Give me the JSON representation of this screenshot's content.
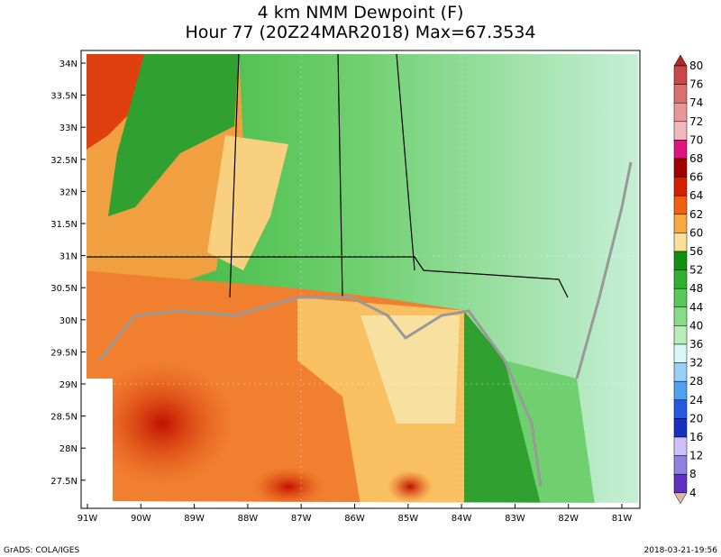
{
  "title": {
    "line1": "4 km NMM Dewpoint (F)",
    "line2": "Hour 77 (20Z24MAR2018) Max=67.3534"
  },
  "lat_labels": [
    "34N",
    "33.5N",
    "33N",
    "32.5N",
    "32N",
    "31.5N",
    "31N",
    "30.5N",
    "30N",
    "29.5N",
    "29N",
    "28.5N",
    "28N",
    "27.5N"
  ],
  "lon_labels": [
    "91W",
    "90W",
    "89W",
    "88W",
    "87W",
    "86W",
    "85W",
    "84W",
    "83W",
    "82W",
    "81W"
  ],
  "colorbar": {
    "labels": [
      "80",
      "76",
      "74",
      "72",
      "70",
      "68",
      "66",
      "64",
      "62",
      "60",
      "56",
      "52",
      "48",
      "44",
      "40",
      "36",
      "32",
      "28",
      "24",
      "20",
      "16",
      "12",
      "8",
      "4"
    ],
    "colors": [
      "#b02828",
      "#c84848",
      "#d87070",
      "#e89898",
      "#f0b8b8",
      "#e01480",
      "#a00000",
      "#d82000",
      "#f06010",
      "#f8a840",
      "#f8e098",
      "#109010",
      "#30b030",
      "#58c858",
      "#88dc88",
      "#b8ecb8",
      "#d8f8f8",
      "#98d0f8",
      "#50a0f0",
      "#2858e0",
      "#1830c0",
      "#d0c0f8",
      "#9080e0",
      "#6030c0",
      "#300090",
      "#d8b8a0"
    ]
  },
  "footer": {
    "left": "GrADS: COLA/IGES",
    "right": "2018-03-21-19:56"
  }
}
